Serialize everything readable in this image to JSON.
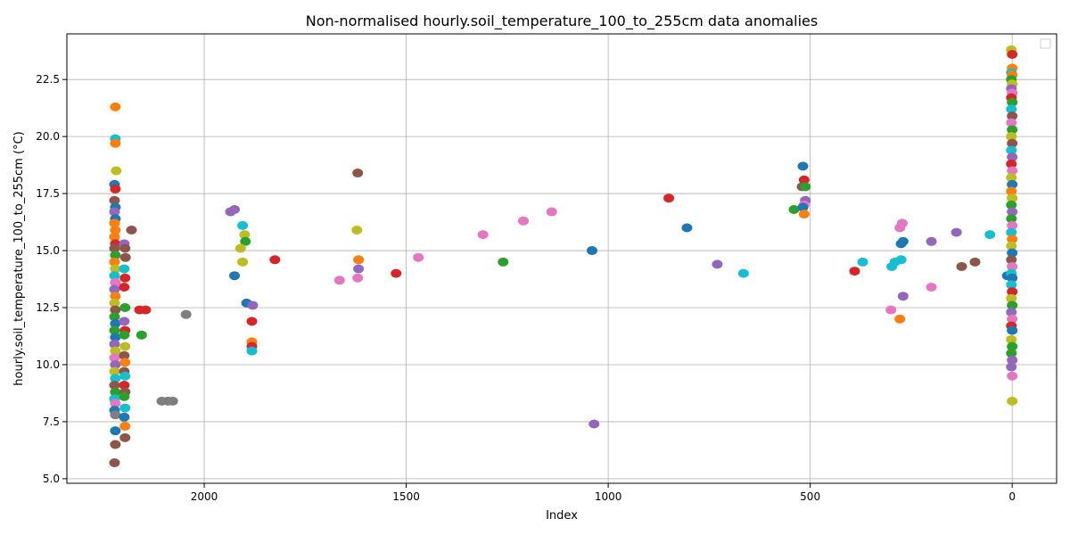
{
  "chart_data": {
    "type": "scatter",
    "title": "Non-normalised hourly.soil_temperature_100_to_255cm data anomalies",
    "xlabel": "Index",
    "ylabel": "hourly.soil_temperature_100_to_255cm (°C)",
    "xlim": [
      2340,
      -110
    ],
    "ylim": [
      4.8,
      24.5
    ],
    "x_inverted": true,
    "x_ticks": [
      2000,
      1500,
      1000,
      500,
      0
    ],
    "y_ticks": [
      5.0,
      7.5,
      10.0,
      12.5,
      15.0,
      17.5,
      20.0,
      22.5
    ],
    "x_tick_labels": [
      "2000",
      "1500",
      "1000",
      "500",
      "0"
    ],
    "y_tick_labels": [
      "5.0",
      "7.5",
      "10.0",
      "12.5",
      "15.0",
      "17.5",
      "20.0",
      "22.5"
    ],
    "grid": true,
    "legend": "top-right (empty)",
    "palette": [
      "#1f77b4",
      "#ff7f0e",
      "#2ca02c",
      "#d62728",
      "#9467bd",
      "#8c564b",
      "#e377c2",
      "#7f7f7f",
      "#bcbd22",
      "#17becf"
    ],
    "points": [
      {
        "x": 2220,
        "y": 21.3,
        "c": "#ff7f0e"
      },
      {
        "x": 2220,
        "y": 19.9,
        "c": "#17becf"
      },
      {
        "x": 2220,
        "y": 19.7,
        "c": "#ff7f0e"
      },
      {
        "x": 2218,
        "y": 18.5,
        "c": "#bcbd22"
      },
      {
        "x": 2222,
        "y": 17.9,
        "c": "#1f77b4"
      },
      {
        "x": 2220,
        "y": 17.7,
        "c": "#d62728"
      },
      {
        "x": 2222,
        "y": 17.2,
        "c": "#8c564b"
      },
      {
        "x": 2220,
        "y": 16.9,
        "c": "#1f77b4"
      },
      {
        "x": 2222,
        "y": 16.7,
        "c": "#9467bd"
      },
      {
        "x": 2220,
        "y": 16.4,
        "c": "#1f77b4"
      },
      {
        "x": 2222,
        "y": 16.2,
        "c": "#ff7f0e"
      },
      {
        "x": 2220,
        "y": 15.9,
        "c": "#ff7f0e"
      },
      {
        "x": 2222,
        "y": 15.6,
        "c": "#ff7f0e"
      },
      {
        "x": 2220,
        "y": 15.3,
        "c": "#d62728"
      },
      {
        "x": 2222,
        "y": 15.1,
        "c": "#8c564b"
      },
      {
        "x": 2220,
        "y": 14.8,
        "c": "#2ca02c"
      },
      {
        "x": 2222,
        "y": 14.5,
        "c": "#ff7f0e"
      },
      {
        "x": 2220,
        "y": 14.2,
        "c": "#bcbd22"
      },
      {
        "x": 2222,
        "y": 13.9,
        "c": "#17becf"
      },
      {
        "x": 2220,
        "y": 13.6,
        "c": "#e377c2"
      },
      {
        "x": 2222,
        "y": 13.3,
        "c": "#9467bd"
      },
      {
        "x": 2220,
        "y": 13.0,
        "c": "#ff7f0e"
      },
      {
        "x": 2222,
        "y": 12.7,
        "c": "#bcbd22"
      },
      {
        "x": 2220,
        "y": 12.4,
        "c": "#8c564b"
      },
      {
        "x": 2222,
        "y": 12.1,
        "c": "#2ca02c"
      },
      {
        "x": 2220,
        "y": 11.8,
        "c": "#1f77b4"
      },
      {
        "x": 2222,
        "y": 11.5,
        "c": "#2ca02c"
      },
      {
        "x": 2220,
        "y": 11.2,
        "c": "#1f77b4"
      },
      {
        "x": 2222,
        "y": 10.9,
        "c": "#9467bd"
      },
      {
        "x": 2220,
        "y": 10.6,
        "c": "#bcbd22"
      },
      {
        "x": 2222,
        "y": 10.3,
        "c": "#e377c2"
      },
      {
        "x": 2220,
        "y": 10.0,
        "c": "#9467bd"
      },
      {
        "x": 2222,
        "y": 9.7,
        "c": "#bcbd22"
      },
      {
        "x": 2220,
        "y": 9.4,
        "c": "#17becf"
      },
      {
        "x": 2222,
        "y": 9.1,
        "c": "#8c564b"
      },
      {
        "x": 2220,
        "y": 8.8,
        "c": "#2ca02c"
      },
      {
        "x": 2222,
        "y": 8.5,
        "c": "#17becf"
      },
      {
        "x": 2220,
        "y": 8.3,
        "c": "#e377c2"
      },
      {
        "x": 2222,
        "y": 8.0,
        "c": "#1f77b4"
      },
      {
        "x": 2220,
        "y": 7.8,
        "c": "#7f7f7f"
      },
      {
        "x": 2220,
        "y": 7.1,
        "c": "#1f77b4"
      },
      {
        "x": 2220,
        "y": 6.5,
        "c": "#8c564b"
      },
      {
        "x": 2222,
        "y": 5.7,
        "c": "#8c564b"
      },
      {
        "x": 2198,
        "y": 15.3,
        "c": "#9467bd"
      },
      {
        "x": 2196,
        "y": 15.1,
        "c": "#8c564b"
      },
      {
        "x": 2195,
        "y": 14.7,
        "c": "#8c564b"
      },
      {
        "x": 2198,
        "y": 14.2,
        "c": "#17becf"
      },
      {
        "x": 2196,
        "y": 13.8,
        "c": "#d62728"
      },
      {
        "x": 2198,
        "y": 13.4,
        "c": "#d62728"
      },
      {
        "x": 2196,
        "y": 12.5,
        "c": "#2ca02c"
      },
      {
        "x": 2198,
        "y": 11.9,
        "c": "#9467bd"
      },
      {
        "x": 2196,
        "y": 11.5,
        "c": "#d62728"
      },
      {
        "x": 2198,
        "y": 11.3,
        "c": "#2ca02c"
      },
      {
        "x": 2196,
        "y": 10.8,
        "c": "#bcbd22"
      },
      {
        "x": 2198,
        "y": 10.4,
        "c": "#8c564b"
      },
      {
        "x": 2196,
        "y": 10.1,
        "c": "#ff7f0e"
      },
      {
        "x": 2198,
        "y": 9.7,
        "c": "#8c564b"
      },
      {
        "x": 2196,
        "y": 9.5,
        "c": "#17becf"
      },
      {
        "x": 2198,
        "y": 9.1,
        "c": "#d62728"
      },
      {
        "x": 2196,
        "y": 8.8,
        "c": "#8c564b"
      },
      {
        "x": 2198,
        "y": 8.6,
        "c": "#2ca02c"
      },
      {
        "x": 2196,
        "y": 8.1,
        "c": "#17becf"
      },
      {
        "x": 2198,
        "y": 7.7,
        "c": "#1f77b4"
      },
      {
        "x": 2196,
        "y": 7.3,
        "c": "#ff7f0e"
      },
      {
        "x": 2196,
        "y": 6.8,
        "c": "#8c564b"
      },
      {
        "x": 2180,
        "y": 15.9,
        "c": "#8c564b"
      },
      {
        "x": 2160,
        "y": 12.4,
        "c": "#d62728"
      },
      {
        "x": 2145,
        "y": 12.4,
        "c": "#d62728"
      },
      {
        "x": 2155,
        "y": 11.3,
        "c": "#2ca02c"
      },
      {
        "x": 2105,
        "y": 8.4,
        "c": "#7f7f7f"
      },
      {
        "x": 2090,
        "y": 8.4,
        "c": "#7f7f7f"
      },
      {
        "x": 2078,
        "y": 8.4,
        "c": "#7f7f7f"
      },
      {
        "x": 2045,
        "y": 12.2,
        "c": "#7f7f7f"
      },
      {
        "x": 1935,
        "y": 16.7,
        "c": "#9467bd"
      },
      {
        "x": 1925,
        "y": 16.8,
        "c": "#9467bd"
      },
      {
        "x": 1905,
        "y": 16.1,
        "c": "#17becf"
      },
      {
        "x": 1900,
        "y": 15.7,
        "c": "#bcbd22"
      },
      {
        "x": 1898,
        "y": 15.4,
        "c": "#2ca02c"
      },
      {
        "x": 1910,
        "y": 15.1,
        "c": "#bcbd22"
      },
      {
        "x": 1905,
        "y": 14.5,
        "c": "#bcbd22"
      },
      {
        "x": 1925,
        "y": 13.9,
        "c": "#1f77b4"
      },
      {
        "x": 1895,
        "y": 12.7,
        "c": "#1f77b4"
      },
      {
        "x": 1880,
        "y": 12.6,
        "c": "#9467bd"
      },
      {
        "x": 1882,
        "y": 11.9,
        "c": "#d62728"
      },
      {
        "x": 1882,
        "y": 11.0,
        "c": "#ff7f0e"
      },
      {
        "x": 1882,
        "y": 10.8,
        "c": "#d62728"
      },
      {
        "x": 1882,
        "y": 10.6,
        "c": "#17becf"
      },
      {
        "x": 1825,
        "y": 14.6,
        "c": "#d62728"
      },
      {
        "x": 1665,
        "y": 13.7,
        "c": "#e377c2"
      },
      {
        "x": 1620,
        "y": 18.4,
        "c": "#8c564b"
      },
      {
        "x": 1622,
        "y": 15.9,
        "c": "#bcbd22"
      },
      {
        "x": 1618,
        "y": 14.6,
        "c": "#ff7f0e"
      },
      {
        "x": 1618,
        "y": 14.2,
        "c": "#9467bd"
      },
      {
        "x": 1620,
        "y": 13.8,
        "c": "#e377c2"
      },
      {
        "x": 1525,
        "y": 14.0,
        "c": "#d62728"
      },
      {
        "x": 1470,
        "y": 14.7,
        "c": "#e377c2"
      },
      {
        "x": 1310,
        "y": 15.7,
        "c": "#e377c2"
      },
      {
        "x": 1260,
        "y": 14.5,
        "c": "#2ca02c"
      },
      {
        "x": 1210,
        "y": 16.3,
        "c": "#e377c2"
      },
      {
        "x": 1140,
        "y": 16.7,
        "c": "#e377c2"
      },
      {
        "x": 1040,
        "y": 15.0,
        "c": "#1f77b4"
      },
      {
        "x": 1035,
        "y": 7.4,
        "c": "#9467bd"
      },
      {
        "x": 850,
        "y": 17.3,
        "c": "#d62728"
      },
      {
        "x": 805,
        "y": 16.0,
        "c": "#1f77b4"
      },
      {
        "x": 730,
        "y": 14.4,
        "c": "#9467bd"
      },
      {
        "x": 665,
        "y": 14.0,
        "c": "#17becf"
      },
      {
        "x": 540,
        "y": 16.8,
        "c": "#2ca02c"
      },
      {
        "x": 518,
        "y": 18.7,
        "c": "#1f77b4"
      },
      {
        "x": 515,
        "y": 18.1,
        "c": "#d62728"
      },
      {
        "x": 520,
        "y": 17.8,
        "c": "#8c564b"
      },
      {
        "x": 512,
        "y": 17.8,
        "c": "#2ca02c"
      },
      {
        "x": 512,
        "y": 17.2,
        "c": "#9467bd"
      },
      {
        "x": 515,
        "y": 17.0,
        "c": "#e377c2"
      },
      {
        "x": 518,
        "y": 16.9,
        "c": "#1f77b4"
      },
      {
        "x": 515,
        "y": 16.6,
        "c": "#ff7f0e"
      },
      {
        "x": 390,
        "y": 14.1,
        "c": "#d62728"
      },
      {
        "x": 370,
        "y": 14.5,
        "c": "#17becf"
      },
      {
        "x": 300,
        "y": 12.4,
        "c": "#e377c2"
      },
      {
        "x": 298,
        "y": 14.3,
        "c": "#17becf"
      },
      {
        "x": 290,
        "y": 14.5,
        "c": "#17becf"
      },
      {
        "x": 278,
        "y": 12.0,
        "c": "#ff7f0e"
      },
      {
        "x": 275,
        "y": 15.3,
        "c": "#1f77b4"
      },
      {
        "x": 272,
        "y": 16.2,
        "c": "#e377c2"
      },
      {
        "x": 270,
        "y": 15.4,
        "c": "#1f77b4"
      },
      {
        "x": 275,
        "y": 14.6,
        "c": "#17becf"
      },
      {
        "x": 270,
        "y": 13.0,
        "c": "#9467bd"
      },
      {
        "x": 278,
        "y": 16.0,
        "c": "#e377c2"
      },
      {
        "x": 200,
        "y": 15.4,
        "c": "#9467bd"
      },
      {
        "x": 200,
        "y": 13.4,
        "c": "#e377c2"
      },
      {
        "x": 138,
        "y": 15.8,
        "c": "#9467bd"
      },
      {
        "x": 125,
        "y": 14.3,
        "c": "#8c564b"
      },
      {
        "x": 92,
        "y": 14.5,
        "c": "#8c564b"
      },
      {
        "x": 55,
        "y": 15.7,
        "c": "#17becf"
      },
      {
        "x": 12,
        "y": 13.9,
        "c": "#1f77b4"
      },
      {
        "x": 2,
        "y": 23.8,
        "c": "#bcbd22"
      },
      {
        "x": 0,
        "y": 23.6,
        "c": "#d62728"
      },
      {
        "x": 0,
        "y": 23.0,
        "c": "#ff7f0e"
      },
      {
        "x": 2,
        "y": 22.8,
        "c": "#17becf"
      },
      {
        "x": 0,
        "y": 22.7,
        "c": "#ff7f0e"
      },
      {
        "x": 2,
        "y": 22.5,
        "c": "#2ca02c"
      },
      {
        "x": 0,
        "y": 22.3,
        "c": "#bcbd22"
      },
      {
        "x": 2,
        "y": 22.1,
        "c": "#9467bd"
      },
      {
        "x": 0,
        "y": 21.9,
        "c": "#e377c2"
      },
      {
        "x": 2,
        "y": 21.7,
        "c": "#d62728"
      },
      {
        "x": 0,
        "y": 21.5,
        "c": "#2ca02c"
      },
      {
        "x": 2,
        "y": 21.2,
        "c": "#17becf"
      },
      {
        "x": 0,
        "y": 20.9,
        "c": "#8c564b"
      },
      {
        "x": 2,
        "y": 20.6,
        "c": "#e377c2"
      },
      {
        "x": 0,
        "y": 20.3,
        "c": "#2ca02c"
      },
      {
        "x": 2,
        "y": 20.0,
        "c": "#bcbd22"
      },
      {
        "x": 0,
        "y": 19.7,
        "c": "#8c564b"
      },
      {
        "x": 2,
        "y": 19.4,
        "c": "#17becf"
      },
      {
        "x": 0,
        "y": 19.1,
        "c": "#9467bd"
      },
      {
        "x": 2,
        "y": 18.8,
        "c": "#d62728"
      },
      {
        "x": 0,
        "y": 18.5,
        "c": "#e377c2"
      },
      {
        "x": 2,
        "y": 18.2,
        "c": "#bcbd22"
      },
      {
        "x": 0,
        "y": 17.9,
        "c": "#1f77b4"
      },
      {
        "x": 2,
        "y": 17.6,
        "c": "#ff7f0e"
      },
      {
        "x": 0,
        "y": 17.3,
        "c": "#bcbd22"
      },
      {
        "x": 2,
        "y": 17.0,
        "c": "#2ca02c"
      },
      {
        "x": 0,
        "y": 16.7,
        "c": "#9467bd"
      },
      {
        "x": 2,
        "y": 16.4,
        "c": "#2ca02c"
      },
      {
        "x": 0,
        "y": 16.1,
        "c": "#e377c2"
      },
      {
        "x": 2,
        "y": 15.8,
        "c": "#17becf"
      },
      {
        "x": 0,
        "y": 15.5,
        "c": "#ff7f0e"
      },
      {
        "x": 2,
        "y": 15.2,
        "c": "#bcbd22"
      },
      {
        "x": 0,
        "y": 14.9,
        "c": "#1f77b4"
      },
      {
        "x": 2,
        "y": 14.6,
        "c": "#8c564b"
      },
      {
        "x": 0,
        "y": 14.3,
        "c": "#e377c2"
      },
      {
        "x": 2,
        "y": 14.0,
        "c": "#17becf"
      },
      {
        "x": 0,
        "y": 13.8,
        "c": "#1f77b4"
      },
      {
        "x": 2,
        "y": 13.5,
        "c": "#17becf"
      },
      {
        "x": 0,
        "y": 13.2,
        "c": "#d62728"
      },
      {
        "x": 2,
        "y": 12.9,
        "c": "#bcbd22"
      },
      {
        "x": 0,
        "y": 12.6,
        "c": "#2ca02c"
      },
      {
        "x": 2,
        "y": 12.3,
        "c": "#9467bd"
      },
      {
        "x": 0,
        "y": 12.0,
        "c": "#e377c2"
      },
      {
        "x": 2,
        "y": 11.7,
        "c": "#d62728"
      },
      {
        "x": 0,
        "y": 11.5,
        "c": "#1f77b4"
      },
      {
        "x": 2,
        "y": 11.1,
        "c": "#bcbd22"
      },
      {
        "x": 0,
        "y": 10.8,
        "c": "#2ca02c"
      },
      {
        "x": 2,
        "y": 10.5,
        "c": "#2ca02c"
      },
      {
        "x": 0,
        "y": 10.2,
        "c": "#9467bd"
      },
      {
        "x": 2,
        "y": 9.9,
        "c": "#9467bd"
      },
      {
        "x": 0,
        "y": 9.5,
        "c": "#e377c2"
      },
      {
        "x": 0,
        "y": 8.4,
        "c": "#bcbd22"
      }
    ]
  }
}
